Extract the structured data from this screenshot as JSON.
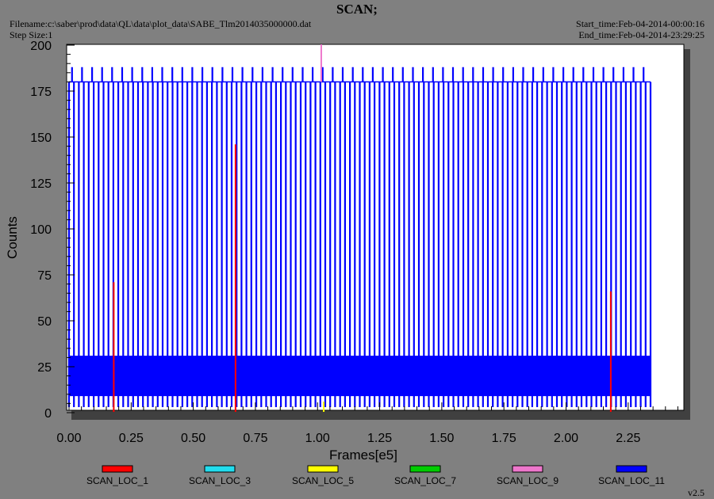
{
  "header": {
    "title": "SCAN;",
    "filename": "Filename:c:\\saber\\prod\\data\\QL\\data\\plot_data\\SABE_Tlm2014035000000.dat",
    "step_size": "Step Size:1",
    "start_time": "Start_time:Feb-04-2014-00:00:16",
    "end_time": "End_time:Feb-04-2014-23:29:25"
  },
  "version": "v2.5",
  "colors": {
    "background": "#808080",
    "plot_area": "#ffffff",
    "SCAN_LOC_1": "#ff0000",
    "SCAN_LOC_3": "#22ddee",
    "SCAN_LOC_5": "#ffff00",
    "SCAN_LOC_7": "#00cc00",
    "SCAN_LOC_9": "#ee77cc",
    "SCAN_LOC_11": "#0000ff"
  },
  "chart_data": {
    "type": "line",
    "title": "SCAN;",
    "xlabel": "Frames[e5]",
    "ylabel": "Counts",
    "xlim": [
      0,
      2.47
    ],
    "ylim": [
      0,
      200
    ],
    "xticks": [
      "0.00",
      "0.25",
      "0.50",
      "0.75",
      "1.00",
      "1.25",
      "1.50",
      "1.75",
      "2.00",
      "2.25"
    ],
    "yticks": [
      "0",
      "25",
      "50",
      "75",
      "100",
      "125",
      "150",
      "175",
      "200"
    ],
    "legend_position": "bottom",
    "series": [
      {
        "name": "SCAN_LOC_11",
        "color": "#0000ff",
        "x_start": 0.0,
        "x_end": 2.34,
        "baseline_band": [
          9,
          31
        ],
        "pulse_high": 180,
        "pulse_low": 3,
        "pulse_count": 118,
        "spike_high": 188,
        "spike_count": 58
      },
      {
        "name": "SCAN_LOC_9",
        "color": "#ee77cc",
        "spikes": [
          {
            "x": 1.015,
            "y": 200
          }
        ]
      },
      {
        "name": "SCAN_LOC_5",
        "color": "#ffff00",
        "spikes": [
          {
            "x": 1.025,
            "y": 6
          }
        ]
      },
      {
        "name": "SCAN_LOC_1",
        "color": "#ff0000",
        "spikes": [
          {
            "x": 0.18,
            "y": 71
          },
          {
            "x": 0.67,
            "y": 146
          },
          {
            "x": 2.18,
            "y": 66
          }
        ]
      },
      {
        "name": "SCAN_LOC_3",
        "color": "#22ddee",
        "spikes": []
      },
      {
        "name": "SCAN_LOC_7",
        "color": "#00cc00",
        "spikes": []
      }
    ],
    "legend": [
      "SCAN_LOC_1",
      "SCAN_LOC_3",
      "SCAN_LOC_5",
      "SCAN_LOC_7",
      "SCAN_LOC_9",
      "SCAN_LOC_11"
    ]
  }
}
